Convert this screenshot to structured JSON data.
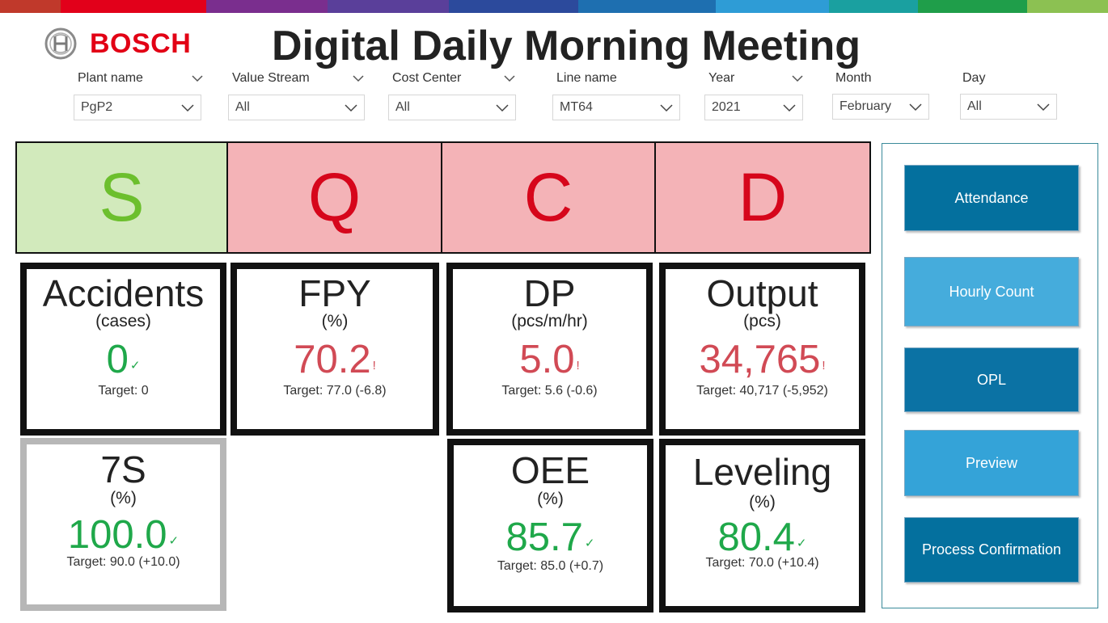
{
  "header": {
    "brand": "BOSCH",
    "brand_icon": "bosch-armature-icon",
    "title": "Digital Daily Morning Meeting",
    "top_bar_colors": [
      "#c0392b",
      "#e2001a",
      "#7a2e8e",
      "#5a3f9a",
      "#2c4a9c",
      "#1e6fb0",
      "#2e9cd6",
      "#1aa0a0",
      "#1f9e4a",
      "#8cc152"
    ]
  },
  "filters": [
    {
      "label": "Plant name",
      "value": "PgP2"
    },
    {
      "label": "Value Stream",
      "value": "All"
    },
    {
      "label": "Cost Center",
      "value": "All"
    },
    {
      "label": "Line name",
      "value": "MT64"
    },
    {
      "label": "Year",
      "value": "2021"
    },
    {
      "label": "Month",
      "value": "February"
    },
    {
      "label": "Day",
      "value": "All"
    }
  ],
  "sqcd": [
    {
      "letter": "S",
      "status": "good",
      "bg": "#d2eabc",
      "fg": "#6cbf2d"
    },
    {
      "letter": "Q",
      "status": "bad",
      "bg": "#f4b3b7",
      "fg": "#d6061b"
    },
    {
      "letter": "C",
      "status": "bad",
      "bg": "#f4b3b7",
      "fg": "#d6061b"
    },
    {
      "letter": "D",
      "status": "bad",
      "bg": "#f4b3b7",
      "fg": "#d6061b"
    }
  ],
  "kpis": {
    "accidents": {
      "name": "Accidents",
      "unit": "(cases)",
      "value": "0",
      "mark": "✓",
      "status": "good",
      "target": "Target: 0"
    },
    "fpy": {
      "name": "FPY",
      "unit": "(%)",
      "value": "70.2",
      "mark": "!",
      "status": "bad",
      "target": "Target: 77.0 (-6.8)"
    },
    "dp": {
      "name": "DP",
      "unit": "(pcs/m/hr)",
      "value": "5.0",
      "mark": "!",
      "status": "bad",
      "target": "Target: 5.6 (-0.6)"
    },
    "output": {
      "name": "Output",
      "unit": "(pcs)",
      "value": "34,765",
      "mark": "!",
      "status": "bad",
      "target": "Target: 40,717 (-5,952)"
    },
    "seven_s": {
      "name": "7S",
      "unit": "(%)",
      "value": "100.0",
      "mark": "✓",
      "status": "good",
      "target": "Target: 90.0 (+10.0)"
    },
    "oee": {
      "name": "OEE",
      "unit": "(%)",
      "value": "85.7",
      "mark": "✓",
      "status": "good",
      "target": "Target: 85.0 (+0.7)"
    },
    "leveling": {
      "name": "Leveling",
      "unit": "(%)",
      "value": "80.4",
      "mark": "✓",
      "status": "good",
      "target": "Target: 70.0 (+10.4)"
    }
  },
  "colors": {
    "good": "#1fa84a",
    "bad": "#d14a55"
  },
  "nav_buttons": [
    {
      "label": "Attendance",
      "color": "#04709e"
    },
    {
      "label": "Hourly Count",
      "color": "#45acdc"
    },
    {
      "label": "OPL",
      "color": "#0b72a4"
    },
    {
      "label": "Preview",
      "color": "#34a3d8"
    },
    {
      "label": "Process Confirmation",
      "color": "#04709e"
    }
  ]
}
